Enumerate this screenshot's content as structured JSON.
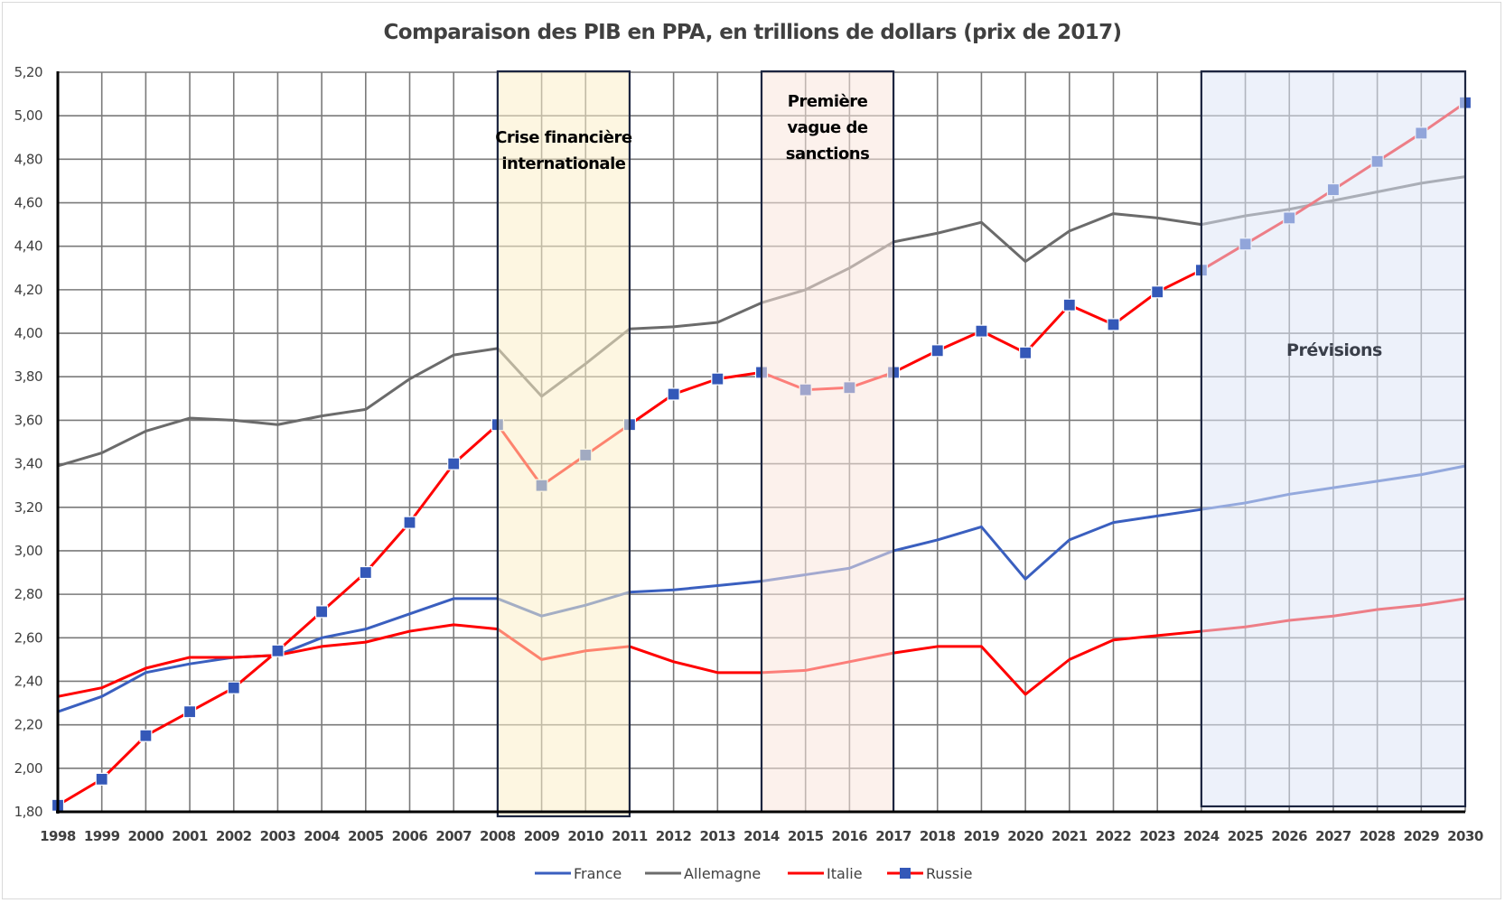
{
  "chart_data": {
    "type": "line",
    "title": "Comparaison des PIB en PPA, en trillions de dollars (prix de 2017)",
    "xlabel": "",
    "ylabel": "",
    "x": [
      1998,
      1999,
      2000,
      2001,
      2002,
      2003,
      2004,
      2005,
      2006,
      2007,
      2008,
      2009,
      2010,
      2011,
      2012,
      2013,
      2014,
      2015,
      2016,
      2017,
      2018,
      2019,
      2020,
      2021,
      2022,
      2023,
      2024,
      2025,
      2026,
      2027,
      2028,
      2029,
      2030
    ],
    "x_tick_labels": [
      "1998",
      "1999",
      "2000",
      "2001",
      "2002",
      "2003",
      "2004",
      "2005",
      "2006",
      "2007",
      "2008",
      "2009",
      "2010",
      "2011",
      "2012",
      "2013",
      "2014",
      "2015",
      "2016",
      "2017",
      "2018",
      "2019",
      "2020",
      "2021",
      "2022",
      "2023",
      "2024",
      "2025",
      "2026",
      "2027",
      "2028",
      "2029",
      "2030"
    ],
    "ylim": [
      1.8,
      5.2
    ],
    "y_ticks": [
      1.8,
      2.0,
      2.2,
      2.4,
      2.6,
      2.8,
      3.0,
      3.2,
      3.4,
      3.6,
      3.8,
      4.0,
      4.2,
      4.4,
      4.6,
      4.8,
      5.0,
      5.2
    ],
    "y_tick_labels": [
      "1,80",
      "2,00",
      "2,20",
      "2,40",
      "2,60",
      "2,80",
      "3,00",
      "3,20",
      "3,40",
      "3,60",
      "3,80",
      "4,00",
      "4,20",
      "4,40",
      "4,60",
      "4,80",
      "5,00",
      "5,20"
    ],
    "grid": true,
    "legend_position": "bottom",
    "series": [
      {
        "name": "France",
        "color": "#3a5fbf",
        "marker": "none",
        "values": [
          2.26,
          2.33,
          2.44,
          2.48,
          2.51,
          2.52,
          2.6,
          2.64,
          2.71,
          2.78,
          2.78,
          2.7,
          2.75,
          2.81,
          2.82,
          2.84,
          2.86,
          2.89,
          2.92,
          3.0,
          3.05,
          3.11,
          2.87,
          3.05,
          3.13,
          3.16,
          3.19,
          3.22,
          3.26,
          3.29,
          3.32,
          3.35,
          3.39
        ]
      },
      {
        "name": "Allemagne",
        "color": "#6b6b6b",
        "marker": "none",
        "values": [
          3.39,
          3.45,
          3.55,
          3.61,
          3.6,
          3.58,
          3.62,
          3.65,
          3.79,
          3.9,
          3.93,
          3.71,
          3.86,
          4.02,
          4.03,
          4.05,
          4.14,
          4.2,
          4.3,
          4.42,
          4.46,
          4.51,
          4.33,
          4.47,
          4.55,
          4.53,
          4.5,
          4.54,
          4.57,
          4.61,
          4.65,
          4.69,
          4.72
        ]
      },
      {
        "name": "Italie",
        "color": "#ff0000",
        "marker": "none",
        "values": [
          2.33,
          2.37,
          2.46,
          2.51,
          2.51,
          2.52,
          2.56,
          2.58,
          2.63,
          2.66,
          2.64,
          2.5,
          2.54,
          2.56,
          2.49,
          2.44,
          2.44,
          2.45,
          2.49,
          2.53,
          2.56,
          2.56,
          2.34,
          2.5,
          2.59,
          2.61,
          2.63,
          2.65,
          2.68,
          2.7,
          2.73,
          2.75,
          2.78
        ]
      },
      {
        "name": "Russie",
        "color": "#ff0000",
        "marker": "square",
        "marker_color": "#3458b8",
        "values": [
          1.83,
          1.95,
          2.15,
          2.26,
          2.37,
          2.54,
          2.72,
          2.9,
          3.13,
          3.4,
          3.58,
          3.3,
          3.44,
          3.58,
          3.72,
          3.79,
          3.82,
          3.74,
          3.75,
          3.82,
          3.92,
          4.01,
          3.91,
          4.13,
          4.04,
          4.19,
          4.29,
          4.41,
          4.53,
          4.66,
          4.79,
          4.92,
          5.06
        ]
      }
    ],
    "annotations": [
      {
        "label_lines": [
          "Crise financière",
          "internationale"
        ],
        "x_start": 2008,
        "x_end": 2011,
        "fill": "#fcefc9",
        "border": "#1c2540"
      },
      {
        "label_lines": [
          "Première",
          "vague de",
          "sanctions"
        ],
        "x_start": 2014,
        "x_end": 2017,
        "fill": "#f9e6dc",
        "border": "#1c2540"
      },
      {
        "label_lines": [
          "Prévisions"
        ],
        "x_start": 2024,
        "x_end": 2030,
        "fill": "#dfe6f6",
        "border": "#1c2540"
      }
    ]
  }
}
